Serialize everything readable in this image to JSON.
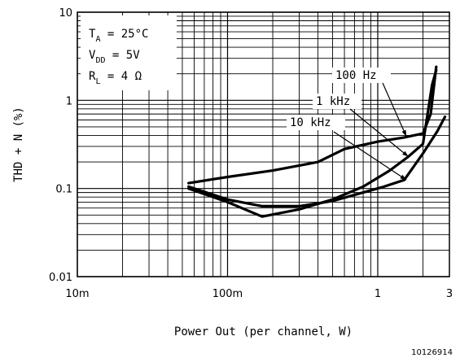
{
  "chart_data": {
    "type": "line",
    "title": "",
    "xlabel": "Power Out (per channel, W)",
    "ylabel": "THD + N (%)",
    "xscale": "log",
    "yscale": "log",
    "xlim": [
      0.01,
      3
    ],
    "ylim": [
      0.01,
      10
    ],
    "xticks": [
      {
        "value": 0.01,
        "label": "10m"
      },
      {
        "value": 0.1,
        "label": "100m"
      },
      {
        "value": 1,
        "label": "1"
      },
      {
        "value": 3,
        "label": "3"
      }
    ],
    "yticks": [
      {
        "value": 10,
        "label": "10"
      },
      {
        "value": 1,
        "label": "1"
      },
      {
        "value": 0.1,
        "label": "0.1"
      },
      {
        "value": 0.01,
        "label": "0.01"
      }
    ],
    "grid": true,
    "conditions": [
      {
        "main": "T",
        "sub": "A",
        "rest": " = 25°C"
      },
      {
        "main": "V",
        "sub": "DD",
        "rest": " = 5V"
      },
      {
        "main": "R",
        "sub": "L",
        "rest": " = 4 Ω"
      }
    ],
    "series": [
      {
        "name": "100 Hz",
        "x": [
          0.055,
          0.1,
          0.2,
          0.4,
          0.6,
          1.0,
          1.5,
          2.0,
          2.25,
          2.45
        ],
        "y": [
          0.115,
          0.135,
          0.16,
          0.2,
          0.28,
          0.34,
          0.38,
          0.42,
          0.7,
          2.4
        ]
      },
      {
        "name": "1 kHz",
        "x": [
          0.055,
          0.1,
          0.17,
          0.3,
          0.5,
          0.8,
          1.2,
          1.6,
          2.0,
          2.3,
          2.45
        ],
        "y": [
          0.1,
          0.07,
          0.048,
          0.058,
          0.075,
          0.105,
          0.16,
          0.23,
          0.32,
          1.5,
          2.2
        ]
      },
      {
        "name": "10 kHz",
        "x": [
          0.055,
          0.1,
          0.17,
          0.3,
          0.5,
          0.8,
          1.1,
          1.5,
          2.0,
          2.5,
          2.8
        ],
        "y": [
          0.105,
          0.075,
          0.063,
          0.063,
          0.072,
          0.09,
          0.105,
          0.125,
          0.25,
          0.45,
          0.65
        ]
      }
    ],
    "figure_id": "10126914"
  }
}
